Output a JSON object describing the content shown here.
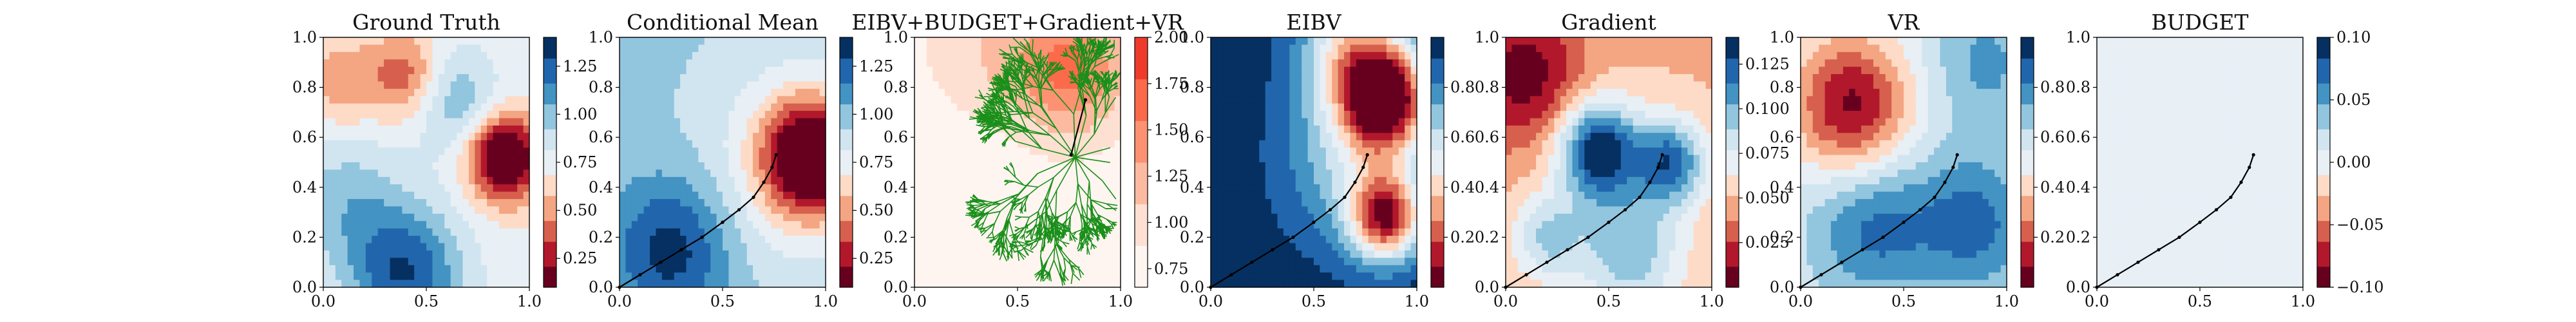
{
  "chart_data": [
    {
      "type": "heatmap",
      "title": "Ground Truth",
      "xlim": [
        0,
        1
      ],
      "ylim": [
        0,
        1
      ],
      "x_ticks": [
        "0.0",
        "0.5",
        "1.0"
      ],
      "y_ticks": [
        "0.0",
        "0.2",
        "0.4",
        "0.6",
        "0.8",
        "1.0"
      ],
      "colorbar": {
        "min": 0.1,
        "max": 1.4,
        "ticks": [
          "0.25",
          "0.50",
          "0.75",
          "1.00",
          "1.25"
        ],
        "tick_values": [
          0.25,
          0.5,
          0.75,
          1.0,
          1.25
        ],
        "cmap": "RdBu"
      },
      "field": {
        "base": 0.72,
        "blobs": [
          [
            0.88,
            0.52,
            0.12,
            -0.8
          ],
          [
            0.4,
            0.05,
            0.2,
            0.55
          ],
          [
            0.1,
            0.35,
            0.2,
            0.25
          ],
          [
            0.4,
            0.85,
            0.12,
            -0.35
          ],
          [
            0.1,
            0.82,
            0.12,
            -0.25
          ],
          [
            0.65,
            0.75,
            0.15,
            0.3
          ]
        ]
      },
      "trajectory": []
    },
    {
      "type": "heatmap",
      "title": "Conditional Mean",
      "xlim": [
        0,
        1
      ],
      "ylim": [
        0,
        1
      ],
      "x_ticks": [
        "0.0",
        "0.5",
        "1.0"
      ],
      "y_ticks": [
        "0.0",
        "0.2",
        "0.4",
        "0.6",
        "0.8",
        "1.0"
      ],
      "colorbar": {
        "min": 0.1,
        "max": 1.4,
        "ticks": [
          "0.25",
          "0.50",
          "0.75",
          "1.00",
          "1.25"
        ],
        "tick_values": [
          0.25,
          0.5,
          0.75,
          1.0,
          1.25
        ],
        "cmap": "RdBu"
      },
      "field": {
        "base": 0.95,
        "blobs": [
          [
            0.93,
            0.52,
            0.16,
            -0.9
          ],
          [
            0.25,
            0.15,
            0.2,
            0.4
          ],
          [
            0.85,
            0.5,
            0.3,
            -0.25
          ]
        ]
      },
      "trajectory": [
        [
          0.0,
          0.0
        ],
        [
          0.1,
          0.05
        ],
        [
          0.2,
          0.1
        ],
        [
          0.3,
          0.15
        ],
        [
          0.4,
          0.2
        ],
        [
          0.5,
          0.26
        ],
        [
          0.58,
          0.31
        ],
        [
          0.65,
          0.36
        ],
        [
          0.7,
          0.42
        ],
        [
          0.74,
          0.48
        ],
        [
          0.76,
          0.53
        ]
      ]
    },
    {
      "type": "heatmap",
      "title": "EIBV+BUDGET+Gradient+VR",
      "xlim": [
        0,
        1
      ],
      "ylim": [
        0,
        1
      ],
      "x_ticks": [
        "0.0",
        "0.5",
        "1.0"
      ],
      "y_ticks": [
        "0.0",
        "0.2",
        "0.4",
        "0.6",
        "0.8",
        "1.0"
      ],
      "colorbar": {
        "min": 0.65,
        "max": 2.0,
        "ticks": [
          "0.75",
          "1.00",
          "1.25",
          "1.50",
          "1.75",
          "2.00"
        ],
        "tick_values": [
          0.75,
          1.0,
          1.25,
          1.5,
          1.75,
          2.0
        ],
        "cmap": "Reds"
      },
      "field": {
        "base": 0.72,
        "blobs": [
          [
            0.75,
            0.88,
            0.2,
            0.9
          ],
          [
            0.3,
            0.95,
            0.2,
            0.3
          ]
        ]
      },
      "trajectory": [
        [
          0.76,
          0.53
        ],
        [
          0.83,
          0.75
        ]
      ],
      "tree": {
        "root": [
          0.78,
          0.52
        ],
        "color": "#1a8f1a",
        "seed": 7
      }
    },
    {
      "type": "heatmap",
      "title": "EIBV",
      "xlim": [
        0,
        1
      ],
      "ylim": [
        0,
        1
      ],
      "x_ticks": [
        "0.0",
        "0.5",
        "1.0"
      ],
      "y_ticks": [
        "0.0",
        "0.2",
        "0.4",
        "0.6",
        "0.8",
        "1.0"
      ],
      "colorbar": {
        "min": 0.0,
        "max": 1.0,
        "ticks": [
          "0.2",
          "0.4",
          "0.6",
          "0.8"
        ],
        "tick_values": [
          0.2,
          0.4,
          0.6,
          0.8
        ],
        "cmap": "RdBu"
      },
      "field": {
        "base": 0.97,
        "blobs": [
          [
            0.85,
            0.75,
            0.14,
            -0.85
          ],
          [
            0.85,
            0.28,
            0.12,
            -0.75
          ],
          [
            0.7,
            0.95,
            0.18,
            -0.5
          ],
          [
            0.72,
            0.52,
            0.25,
            -0.35
          ]
        ]
      },
      "trajectory": [
        [
          0.0,
          0.0
        ],
        [
          0.1,
          0.05
        ],
        [
          0.2,
          0.1
        ],
        [
          0.3,
          0.15
        ],
        [
          0.4,
          0.2
        ],
        [
          0.5,
          0.26
        ],
        [
          0.58,
          0.31
        ],
        [
          0.65,
          0.36
        ],
        [
          0.7,
          0.42
        ],
        [
          0.74,
          0.48
        ],
        [
          0.76,
          0.53
        ]
      ]
    },
    {
      "type": "heatmap",
      "title": "Gradient",
      "xlim": [
        0,
        1
      ],
      "ylim": [
        0,
        1
      ],
      "x_ticks": [
        "0.0",
        "0.5",
        "1.0"
      ],
      "y_ticks": [
        "0.0",
        "0.2",
        "0.4",
        "0.6",
        "0.8",
        "1.0"
      ],
      "colorbar": {
        "min": 0.0,
        "max": 0.14,
        "ticks": [
          "0.025",
          "0.050",
          "0.075",
          "0.100",
          "0.125"
        ],
        "tick_values": [
          0.025,
          0.05,
          0.075,
          0.1,
          0.125
        ],
        "cmap": "RdBu"
      },
      "field": {
        "base": 0.05,
        "blobs": [
          [
            0.45,
            0.55,
            0.14,
            0.09
          ],
          [
            0.8,
            0.5,
            0.12,
            0.07
          ],
          [
            0.6,
            0.15,
            0.18,
            0.05
          ],
          [
            0.1,
            0.85,
            0.2,
            -0.045
          ],
          [
            0.2,
            0.2,
            0.12,
            0.04
          ]
        ]
      },
      "trajectory": [
        [
          0.0,
          0.0
        ],
        [
          0.1,
          0.05
        ],
        [
          0.2,
          0.1
        ],
        [
          0.3,
          0.15
        ],
        [
          0.4,
          0.2
        ],
        [
          0.5,
          0.26
        ],
        [
          0.58,
          0.31
        ],
        [
          0.65,
          0.36
        ],
        [
          0.7,
          0.42
        ],
        [
          0.74,
          0.48
        ],
        [
          0.76,
          0.53
        ]
      ]
    },
    {
      "type": "heatmap",
      "title": "VR",
      "xlim": [
        0,
        1
      ],
      "ylim": [
        0,
        1
      ],
      "x_ticks": [
        "0.0",
        "0.5",
        "1.0"
      ],
      "y_ticks": [
        "0.0",
        "0.2",
        "0.4",
        "0.6",
        "0.8",
        "1.0"
      ],
      "colorbar": {
        "min": 0.0,
        "max": 1.0,
        "ticks": [
          "0.2",
          "0.4",
          "0.6",
          "0.8"
        ],
        "tick_values": [
          0.2,
          0.4,
          0.6,
          0.8
        ],
        "cmap": "RdBu"
      },
      "field": {
        "base": 0.55,
        "blobs": [
          [
            0.25,
            0.72,
            0.2,
            -0.5
          ],
          [
            0.35,
            0.25,
            0.22,
            0.3
          ],
          [
            0.85,
            0.25,
            0.2,
            0.3
          ],
          [
            0.9,
            0.9,
            0.2,
            0.2
          ]
        ]
      },
      "trajectory": [
        [
          0.0,
          0.0
        ],
        [
          0.1,
          0.05
        ],
        [
          0.2,
          0.1
        ],
        [
          0.3,
          0.15
        ],
        [
          0.4,
          0.2
        ],
        [
          0.5,
          0.26
        ],
        [
          0.58,
          0.31
        ],
        [
          0.65,
          0.36
        ],
        [
          0.7,
          0.42
        ],
        [
          0.74,
          0.48
        ],
        [
          0.76,
          0.53
        ]
      ]
    },
    {
      "type": "heatmap",
      "title": "BUDGET",
      "xlim": [
        0,
        1
      ],
      "ylim": [
        0,
        1
      ],
      "x_ticks": [
        "0.0",
        "0.5",
        "1.0"
      ],
      "y_ticks": [
        "0.0",
        "0.2",
        "0.4",
        "0.6",
        "0.8",
        "1.0"
      ],
      "colorbar": {
        "min": -0.1,
        "max": 0.1,
        "ticks": [
          "−0.10",
          "−0.05",
          "0.00",
          "0.05",
          "0.10"
        ],
        "tick_values": [
          -0.1,
          -0.05,
          0.0,
          0.05,
          0.1
        ],
        "cmap": "RdBu"
      },
      "field": {
        "base": 0.0,
        "blobs": []
      },
      "trajectory": [
        [
          0.0,
          0.0
        ],
        [
          0.1,
          0.05
        ],
        [
          0.2,
          0.1
        ],
        [
          0.3,
          0.15
        ],
        [
          0.4,
          0.2
        ],
        [
          0.5,
          0.26
        ],
        [
          0.58,
          0.31
        ],
        [
          0.65,
          0.36
        ],
        [
          0.7,
          0.42
        ],
        [
          0.74,
          0.48
        ],
        [
          0.76,
          0.53
        ]
      ]
    }
  ]
}
